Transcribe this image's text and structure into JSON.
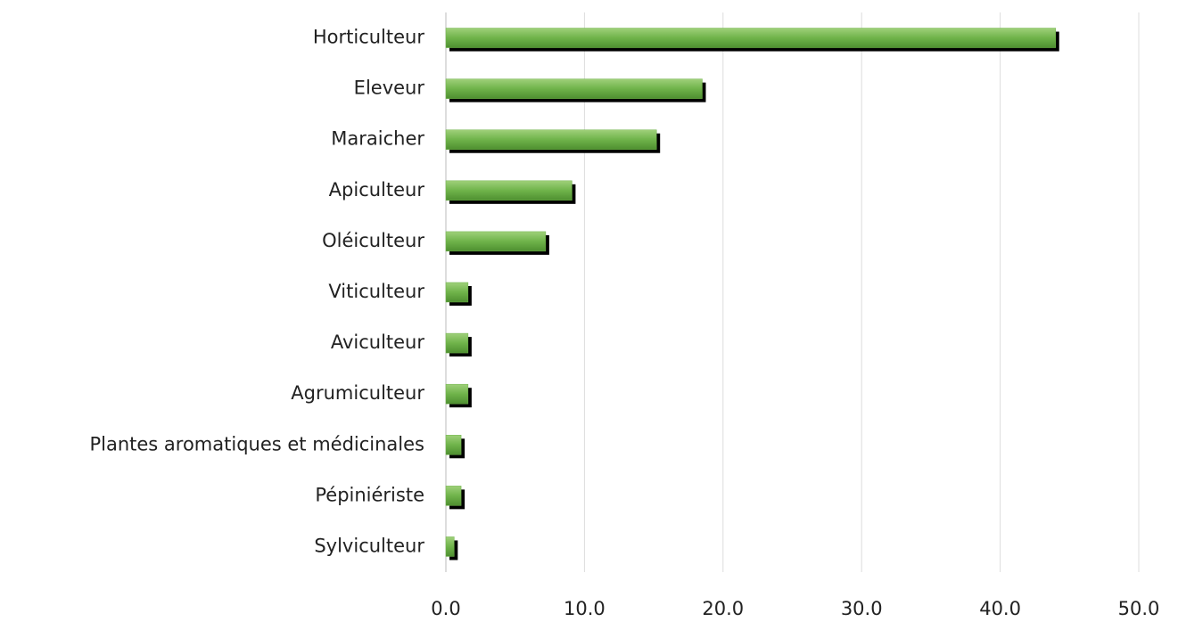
{
  "chart_data": {
    "type": "barh",
    "categories": [
      "Horticulteur",
      "Eleveur",
      "Maraicher",
      "Apiculteur",
      "Oléiculteur",
      "Viticulteur",
      "Aviculteur",
      "Agrumiculteur",
      "Plantes aromatiques et médicinales",
      "Pépiniériste",
      "Sylviculteur"
    ],
    "values": [
      44.0,
      18.5,
      15.2,
      9.1,
      7.2,
      1.6,
      1.6,
      1.6,
      1.1,
      1.1,
      0.6
    ],
    "color": "#6fb34a",
    "xlim": [
      0,
      50
    ],
    "xticks": [
      {
        "value": 0,
        "label": "0.0"
      },
      {
        "value": 10,
        "label": "10.0"
      },
      {
        "value": 20,
        "label": "20.0"
      },
      {
        "value": 30,
        "label": "30.0"
      },
      {
        "value": 40,
        "label": "40.0"
      },
      {
        "value": 50,
        "label": "50.0"
      }
    ],
    "grid": true
  }
}
